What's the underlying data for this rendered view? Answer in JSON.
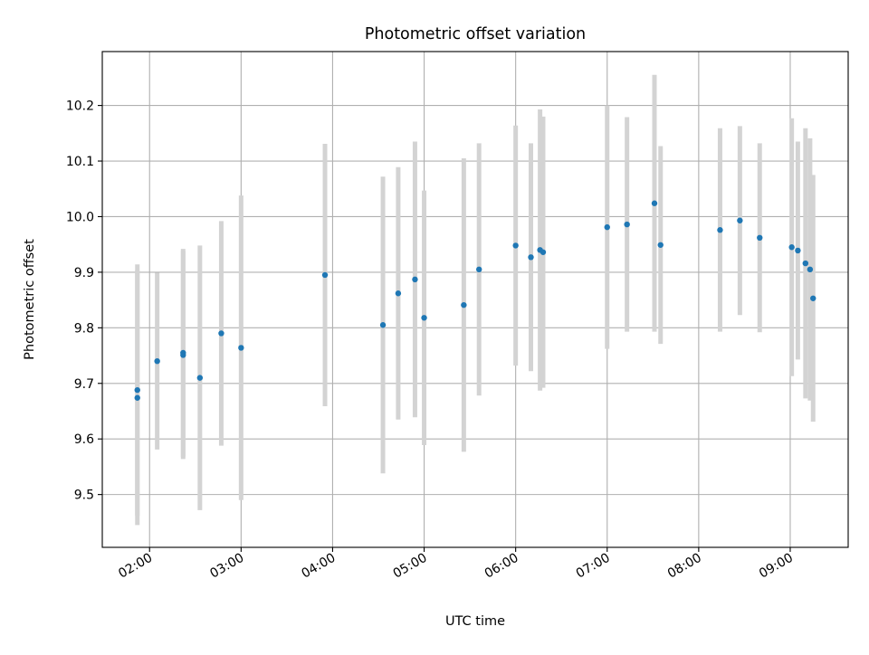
{
  "chart_data": {
    "type": "scatter",
    "title": "Photometric offset variation",
    "xlabel": "UTC time",
    "ylabel": "Photometric offset",
    "x_tick_labels": [
      "02:00",
      "03:00",
      "04:00",
      "05:00",
      "06:00",
      "07:00",
      "08:00",
      "09:00"
    ],
    "y_tick_labels": [
      "9.5",
      "9.6",
      "9.7",
      "9.8",
      "9.9",
      "10.0",
      "10.1",
      "10.2"
    ],
    "xlim": [
      "01:29",
      "09:38"
    ],
    "ylim": [
      9.405,
      10.297
    ],
    "grid": true,
    "legend": "none",
    "point_color": "#1f77b4",
    "errorbar_color": "#d3d3d3",
    "series": [
      {
        "x": [
          "01:52",
          "01:52",
          "02:05",
          "02:22",
          "02:22",
          "02:33",
          "02:47",
          "03:00",
          "03:55",
          "04:33",
          "04:43",
          "04:54",
          "05:00",
          "05:26",
          "05:36",
          "06:00",
          "06:10",
          "06:16",
          "06:18",
          "07:00",
          "07:13",
          "07:31",
          "07:35",
          "08:14",
          "08:27",
          "08:40",
          "09:01",
          "09:05",
          "09:10",
          "09:13",
          "09:15"
        ],
        "y": [
          9.688,
          9.674,
          9.74,
          9.755,
          9.751,
          9.71,
          9.79,
          9.764,
          9.895,
          9.805,
          9.862,
          9.887,
          9.818,
          9.841,
          9.905,
          9.948,
          9.927,
          9.94,
          9.936,
          9.981,
          9.986,
          10.024,
          9.949,
          9.976,
          9.993,
          9.962,
          9.945,
          9.939,
          9.916,
          9.905,
          9.853
        ],
        "yerr": [
          0.226,
          0.229,
          0.159,
          0.187,
          0.187,
          0.238,
          0.202,
          0.274,
          0.236,
          0.267,
          0.227,
          0.248,
          0.229,
          0.264,
          0.227,
          0.216,
          0.205,
          0.253,
          0.244,
          0.219,
          0.193,
          0.231,
          0.178,
          0.183,
          0.17,
          0.17,
          0.232,
          0.196,
          0.243,
          0.236,
          0.222
        ]
      }
    ]
  }
}
